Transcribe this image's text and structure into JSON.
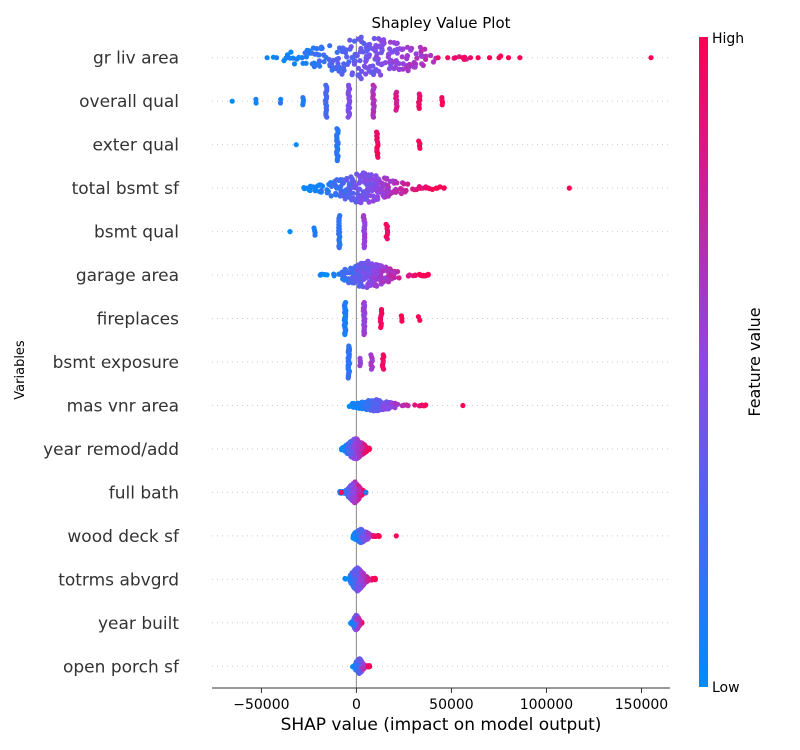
{
  "chart_data": {
    "type": "scatter",
    "subtype": "shap-beeswarm",
    "title": "Shapley Value Plot",
    "xlabel": "SHAP value (impact on model output)",
    "ylabel": "Variables",
    "xlim": [
      -76000,
      165000
    ],
    "xticks": [
      -50000,
      0,
      50000,
      100000,
      150000
    ],
    "xtick_labels": [
      "−50000",
      "0",
      "50000",
      "100000",
      "150000"
    ],
    "grid": false,
    "colorbar": {
      "label": "Feature value",
      "high_label": "High",
      "low_label": "Low",
      "low_color": "#008bfb",
      "high_color": "#ff0052"
    },
    "colors": {
      "axis_line": "#999999",
      "row_guide": "#cccccc"
    },
    "features": [
      {
        "name": "gr liv area",
        "spread": 22,
        "left": -48000,
        "right": 86000,
        "coreL": -35000,
        "coreR": 45000,
        "outliers": [
          [
            -47000,
            0.05
          ],
          [
            -42000,
            0.1
          ],
          [
            43000,
            0.9
          ],
          [
            48000,
            0.95
          ],
          [
            52000,
            0.95
          ],
          [
            56000,
            1.0
          ],
          [
            60000,
            0.95
          ],
          [
            64000,
            1.0
          ],
          [
            70000,
            1.0
          ],
          [
            75000,
            1.0
          ],
          [
            80000,
            1.0
          ],
          [
            86000,
            1.0
          ],
          [
            155000,
            1.0
          ]
        ]
      },
      {
        "name": "overall qual",
        "clusters": [
          [
            -65000,
            0.0,
            1
          ],
          [
            -53000,
            0.05,
            2
          ],
          [
            -40000,
            0.1,
            2
          ],
          [
            -28000,
            0.15,
            4
          ],
          [
            -16000,
            0.25,
            18
          ],
          [
            -4000,
            0.45,
            18
          ],
          [
            9000,
            0.65,
            18
          ],
          [
            21000,
            0.8,
            10
          ],
          [
            33000,
            0.92,
            8
          ],
          [
            45000,
            1.0,
            4
          ]
        ]
      },
      {
        "name": "exter qual",
        "clusters": [
          [
            -32000,
            0.05,
            1
          ],
          [
            -10000,
            0.15,
            22
          ],
          [
            11000,
            0.95,
            14
          ],
          [
            33000,
            1.0,
            4
          ]
        ]
      },
      {
        "name": "total bsmt sf",
        "spread": 16,
        "left": -28000,
        "right": 47000,
        "coreL": -20000,
        "coreR": 27000,
        "outliers": [
          [
            -26000,
            0.05
          ],
          [
            33000,
            0.9
          ],
          [
            38000,
            0.95
          ],
          [
            42000,
            1.0
          ],
          [
            46000,
            1.0
          ],
          [
            112000,
            1.0
          ]
        ]
      },
      {
        "name": "bsmt qual",
        "clusters": [
          [
            -35000,
            0.05,
            1
          ],
          [
            -22000,
            0.1,
            4
          ],
          [
            -9000,
            0.15,
            22
          ],
          [
            4000,
            0.55,
            20
          ],
          [
            16000,
            0.95,
            8
          ]
        ]
      },
      {
        "name": "garage area",
        "spread": 14,
        "left": -19000,
        "right": 38000,
        "coreL": -10000,
        "coreR": 22000,
        "outliers": [
          [
            -19000,
            0.05
          ],
          [
            31000,
            0.95
          ],
          [
            34000,
            1.0
          ],
          [
            37000,
            1.0
          ]
        ]
      },
      {
        "name": "fireplaces",
        "clusters": [
          [
            -6000,
            0.1,
            30
          ],
          [
            4000,
            0.55,
            24
          ],
          [
            13000,
            0.95,
            10
          ],
          [
            24000,
            1.0,
            3
          ],
          [
            33000,
            1.0,
            2
          ]
        ]
      },
      {
        "name": "bsmt exposure",
        "clusters": [
          [
            -4000,
            0.15,
            30
          ],
          [
            2000,
            0.55,
            4
          ],
          [
            8000,
            0.6,
            8
          ],
          [
            14000,
            0.95,
            8
          ]
        ]
      },
      {
        "name": "mas vnr area",
        "spread": 6,
        "left": -4000,
        "right": 38000,
        "coreL": -3000,
        "coreR": 22000,
        "outliers": [
          [
            56000,
            1.0
          ]
        ]
      },
      {
        "name": "year remod/add",
        "spread": 11,
        "left": -8000,
        "right": 7000,
        "coreL": -6000,
        "coreR": 5000,
        "outliers": []
      },
      {
        "name": "full bath",
        "spread": 11,
        "left": -9000,
        "right": 5000,
        "coreL": -5000,
        "coreR": 3000,
        "outliers": [
          [
            -8000,
            0.95
          ],
          [
            5000,
            0.1
          ]
        ]
      },
      {
        "name": "wood deck sf",
        "spread": 7,
        "left": -2000,
        "right": 12000,
        "coreL": -2000,
        "coreR": 7000,
        "outliers": [
          [
            21000,
            1.0
          ]
        ]
      },
      {
        "name": "totrms abvgrd",
        "spread": 12,
        "left": -6000,
        "right": 10000,
        "coreL": -4000,
        "coreR": 5000,
        "outliers": []
      },
      {
        "name": "year built",
        "spread": 8,
        "left": -3000,
        "right": 3000,
        "coreL": -2000,
        "coreR": 2000,
        "outliers": []
      },
      {
        "name": "open porch sf",
        "spread": 8,
        "left": -2000,
        "right": 7000,
        "coreL": -1000,
        "coreR": 4000,
        "outliers": []
      }
    ]
  }
}
